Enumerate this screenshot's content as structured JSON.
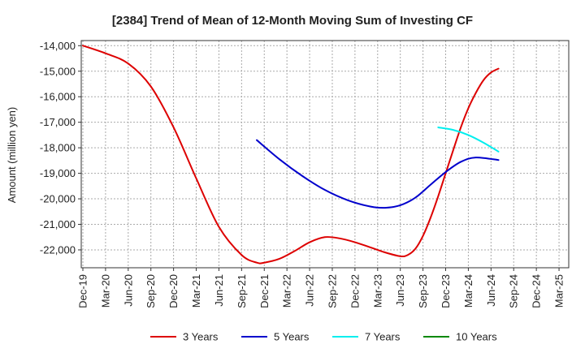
{
  "chart_data": {
    "type": "line",
    "title": "[2384]  Trend of Mean of 12-Month Moving Sum of Investing CF",
    "ylabel": "Amount (million yen)",
    "xlabel": "",
    "categories": [
      "Dec-19",
      "Mar-20",
      "Jun-20",
      "Sep-20",
      "Dec-20",
      "Mar-21",
      "Jun-21",
      "Sep-21",
      "Dec-21",
      "Mar-22",
      "Jun-22",
      "Sep-22",
      "Dec-22",
      "Mar-23",
      "Jun-23",
      "Sep-23",
      "Dec-23",
      "Mar-24",
      "Jun-24",
      "Sep-24",
      "Dec-24",
      "Mar-25"
    ],
    "y_ticks": [
      -14000,
      -15000,
      -16000,
      -17000,
      -18000,
      -19000,
      -20000,
      -21000,
      -22000
    ],
    "y_tick_labels": [
      "-14,000",
      "-15,000",
      "-16,000",
      "-17,000",
      "-18,000",
      "-19,000",
      "-20,000",
      "-21,000",
      "-22,000"
    ],
    "ylim": [
      -22700,
      -13800
    ],
    "grid": true,
    "legend_position": "bottom",
    "series": [
      {
        "name": "3 Years",
        "color": "#dd0000",
        "points": [
          [
            0,
            -14000
          ],
          [
            1,
            -14300
          ],
          [
            2,
            -14700
          ],
          [
            3,
            -15600
          ],
          [
            4,
            -17200
          ],
          [
            5,
            -19200
          ],
          [
            6,
            -21100
          ],
          [
            7,
            -22200
          ],
          [
            7.67,
            -22500
          ],
          [
            8,
            -22500
          ],
          [
            8.67,
            -22350
          ],
          [
            9.33,
            -22050
          ],
          [
            10,
            -21700
          ],
          [
            10.67,
            -21500
          ],
          [
            11.33,
            -21550
          ],
          [
            12,
            -21700
          ],
          [
            12.67,
            -21900
          ],
          [
            13.33,
            -22100
          ],
          [
            14,
            -22250
          ],
          [
            14.33,
            -22200
          ],
          [
            14.67,
            -21950
          ],
          [
            15,
            -21450
          ],
          [
            15.33,
            -20750
          ],
          [
            15.67,
            -19900
          ],
          [
            16,
            -19000
          ],
          [
            16.33,
            -18100
          ],
          [
            16.67,
            -17200
          ],
          [
            17,
            -16450
          ],
          [
            17.33,
            -15850
          ],
          [
            17.67,
            -15350
          ],
          [
            18,
            -15050
          ],
          [
            18.33,
            -14900
          ]
        ]
      },
      {
        "name": "5 Years",
        "color": "#0000cc",
        "points": [
          [
            7.67,
            -17700
          ],
          [
            8.67,
            -18450
          ],
          [
            9.67,
            -19100
          ],
          [
            10.67,
            -19650
          ],
          [
            11.67,
            -20050
          ],
          [
            12.67,
            -20300
          ],
          [
            13.33,
            -20350
          ],
          [
            14,
            -20250
          ],
          [
            14.67,
            -19950
          ],
          [
            15.33,
            -19450
          ],
          [
            16,
            -18950
          ],
          [
            16.67,
            -18550
          ],
          [
            17.33,
            -18380
          ],
          [
            18.33,
            -18480
          ]
        ]
      },
      {
        "name": "7 Years",
        "color": "#00eeee",
        "points": [
          [
            15.67,
            -17200
          ],
          [
            16.33,
            -17300
          ],
          [
            17,
            -17500
          ],
          [
            17.67,
            -17800
          ],
          [
            18.33,
            -18150
          ]
        ]
      },
      {
        "name": "10 Years",
        "color": "#008800",
        "points": []
      }
    ]
  }
}
